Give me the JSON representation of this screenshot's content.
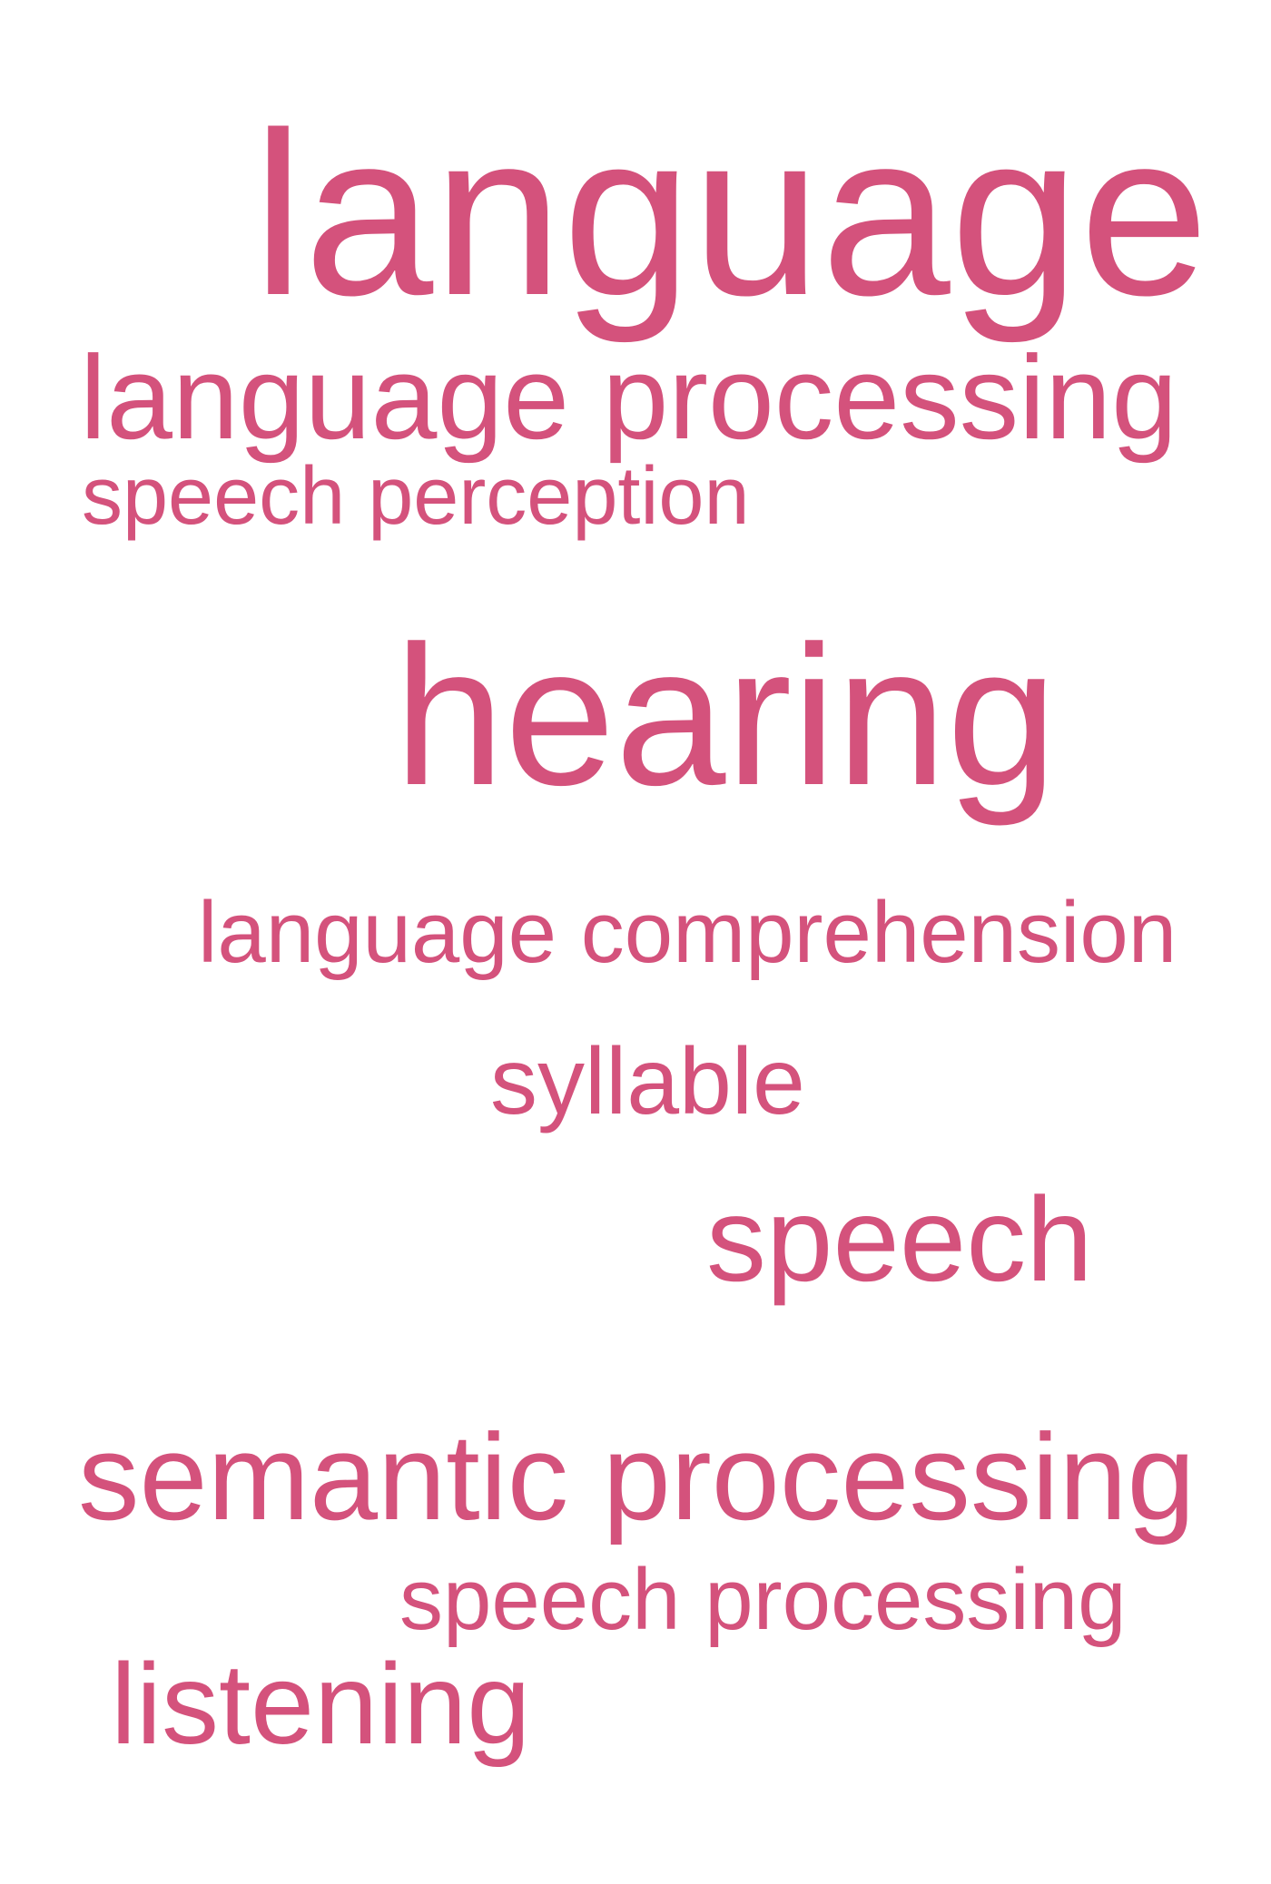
{
  "colors": {
    "word": "#d4527c",
    "background": "#ffffff"
  },
  "words": [
    {
      "text": "language"
    },
    {
      "text": "language processing"
    },
    {
      "text": "speech perception"
    },
    {
      "text": "hearing"
    },
    {
      "text": "language comprehension"
    },
    {
      "text": "syllable"
    },
    {
      "text": "speech"
    },
    {
      "text": "semantic processing"
    },
    {
      "text": "speech processing"
    },
    {
      "text": "listening"
    }
  ]
}
